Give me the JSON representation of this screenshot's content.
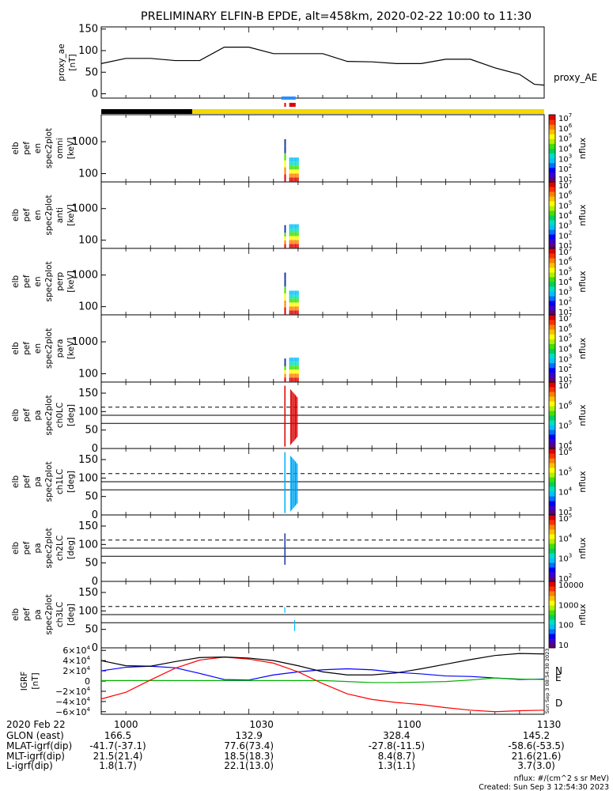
{
  "title": "PRELIMINARY ELFIN-B EPDE, alt=458km, 2020-02-22 10:00 to 11:30",
  "colorbar_label": "nflux",
  "chart_data": [
    {
      "type": "line",
      "id": "proxy_ae",
      "ylabel": [
        "proxy_ae",
        "[nT]"
      ],
      "legend": "proxy_AE",
      "ylim": [
        -10,
        155
      ],
      "yticks": [
        0,
        50,
        100,
        150
      ],
      "x": [
        0,
        5,
        10,
        15,
        20,
        25,
        30,
        35,
        40,
        45,
        50,
        55,
        60,
        65,
        70,
        75,
        80,
        85,
        88,
        90
      ],
      "values": [
        70,
        82,
        82,
        77,
        77,
        108,
        108,
        93,
        93,
        93,
        75,
        74,
        70,
        70,
        80,
        80,
        60,
        45,
        22,
        20
      ]
    },
    {
      "type": "heatmap",
      "id": "omni",
      "scale": "log",
      "ylabel": [
        "elb",
        "pef",
        "en",
        "spec2plot",
        "omni",
        "[keV]"
      ],
      "yticks": [
        100,
        1000
      ],
      "colorbar_ticks": [
        "10",
        "10",
        "10",
        "10",
        "10",
        "10",
        "10"
      ],
      "colorbar_exps": [
        "1",
        "2",
        "3",
        "4",
        "5",
        "6",
        "7"
      ]
    },
    {
      "type": "heatmap",
      "id": "anti",
      "scale": "log",
      "ylabel": [
        "elb",
        "pef",
        "en",
        "spec2plot",
        "anti",
        "[keV]"
      ],
      "yticks": [
        100,
        1000
      ],
      "colorbar_ticks": [
        "10",
        "10",
        "10",
        "10",
        "10",
        "10",
        "10"
      ],
      "colorbar_exps": [
        "1",
        "2",
        "3",
        "4",
        "5",
        "6",
        "7"
      ]
    },
    {
      "type": "heatmap",
      "id": "perp",
      "scale": "log",
      "ylabel": [
        "elb",
        "pef",
        "en",
        "spec2plot",
        "perp",
        "[keV]"
      ],
      "yticks": [
        100,
        1000
      ],
      "colorbar_ticks": [
        "10",
        "10",
        "10",
        "10",
        "10",
        "10",
        "10"
      ],
      "colorbar_exps": [
        "1",
        "2",
        "3",
        "4",
        "5",
        "6",
        "7"
      ]
    },
    {
      "type": "heatmap",
      "id": "para",
      "scale": "log",
      "ylabel": [
        "elb",
        "pef",
        "en",
        "spec2plot",
        "para",
        "[keV]"
      ],
      "yticks": [
        100,
        1000
      ],
      "colorbar_ticks": [
        "10",
        "10",
        "10",
        "10",
        "10",
        "10",
        "10"
      ],
      "colorbar_exps": [
        "1",
        "2",
        "3",
        "4",
        "5",
        "6",
        "7"
      ]
    },
    {
      "type": "heatmap",
      "id": "ch0LC",
      "scale": "linear",
      "ylabel": [
        "elb",
        "pef",
        "pa",
        "spec2plot",
        "ch0LC",
        "[deg]"
      ],
      "ylim": [
        0,
        180
      ],
      "yticks": [
        0,
        50,
        100,
        150
      ],
      "colorbar_ticks": [
        "10",
        "10",
        "10",
        "10"
      ],
      "colorbar_exps": [
        "4",
        "5",
        "6",
        "7"
      ]
    },
    {
      "type": "heatmap",
      "id": "ch1LC",
      "scale": "linear",
      "ylabel": [
        "elb",
        "pef",
        "pa",
        "spec2plot",
        "ch1LC",
        "[deg]"
      ],
      "ylim": [
        0,
        180
      ],
      "yticks": [
        0,
        50,
        100,
        150
      ],
      "colorbar_ticks": [
        "10",
        "10",
        "10",
        "10"
      ],
      "colorbar_exps": [
        "3",
        "4",
        "5",
        "6"
      ]
    },
    {
      "type": "heatmap",
      "id": "ch2LC",
      "scale": "linear",
      "ylabel": [
        "elb",
        "pef",
        "pa",
        "spec2plot",
        "ch2LC",
        "[deg]"
      ],
      "ylim": [
        0,
        180
      ],
      "yticks": [
        0,
        50,
        100,
        150
      ],
      "colorbar_ticks": [
        "10",
        "10",
        "10",
        "10"
      ],
      "colorbar_exps": [
        "2",
        "3",
        "4",
        "5"
      ]
    },
    {
      "type": "heatmap",
      "id": "ch3LC",
      "scale": "linear",
      "ylabel": [
        "elb",
        "pef",
        "pa",
        "spec2plot",
        "ch3LC",
        "[deg]"
      ],
      "ylim": [
        0,
        180
      ],
      "yticks": [
        0,
        50,
        100,
        150
      ],
      "colorbar_ticks": [
        "10",
        "100",
        "1000",
        "10000"
      ]
    },
    {
      "type": "line",
      "id": "igrf",
      "ylabel": [
        "IGRF",
        "[nT]"
      ],
      "ylim": [
        -65000,
        65000
      ],
      "yticks": [
        -60000,
        -40000,
        -20000,
        0,
        20000,
        40000,
        60000
      ],
      "ytick_labels": [
        "−6×10",
        "−4×10",
        "−2×10",
        "0",
        "2×10",
        "4×10",
        "6×10"
      ],
      "ytick_exps": [
        "4",
        "4",
        "4",
        "",
        "4",
        "4",
        "4"
      ],
      "x": [
        0,
        5,
        10,
        15,
        20,
        25,
        30,
        35,
        40,
        45,
        50,
        55,
        60,
        65,
        70,
        75,
        80,
        85,
        90
      ],
      "series": [
        {
          "name": "N",
          "color": "#0000ff",
          "values": [
            20000,
            27000,
            29000,
            26000,
            15000,
            3000,
            2000,
            12000,
            18000,
            22000,
            24000,
            22000,
            17000,
            14000,
            10000,
            9000,
            6000,
            3000,
            4000
          ]
        },
        {
          "name": "E",
          "color": "#00b000",
          "values": [
            1000,
            1000,
            1000,
            1000,
            1000,
            1000,
            1000,
            1000,
            1000,
            1000,
            -1000,
            -3000,
            -3000,
            -2000,
            -1000,
            2000,
            6000,
            4000,
            3000
          ]
        },
        {
          "name": "D",
          "color": "#ff0000",
          "values": [
            -35000,
            -22000,
            2000,
            25000,
            41000,
            47000,
            43000,
            35000,
            18000,
            -5000,
            -25000,
            -36000,
            -42000,
            -46000,
            -52000,
            -57000,
            -60000,
            -58000,
            -57000
          ]
        },
        {
          "name": "",
          "color": "#000000",
          "values": [
            40000,
            30000,
            29000,
            38000,
            46000,
            47000,
            45000,
            40000,
            30000,
            18000,
            12000,
            12000,
            16000,
            24000,
            33000,
            42000,
            50000,
            54000,
            53000
          ]
        }
      ]
    }
  ],
  "bottom": {
    "row_labels": [
      "2020 Feb 22",
      "GLON (east)",
      "MLAT-igrf(dip)",
      "MLT-igrf(dip)",
      "L-igrf(dip)"
    ],
    "times": [
      "1000",
      "1030",
      "1100",
      "1130"
    ],
    "columns": [
      [
        "166.5",
        "-41.7(-37.1)",
        "21.5(21.4)",
        "1.8(1.7)"
      ],
      [
        "132.9",
        "77.6(73.4)",
        "18.5(18.3)",
        "22.1(13.0)"
      ],
      [
        "328.4",
        "-27.8(-11.5)",
        "8.4(8.7)",
        "1.3(1.1)"
      ],
      [
        "145.2",
        "-58.6(-53.5)",
        "21.6(21.6)",
        "3.7(3.0)"
      ]
    ]
  },
  "footer": {
    "units": "nflux: #/(cm^2 s sr MeV)",
    "created": "Created: Sun Sep  3 12:54:30 2023",
    "vertical_stamp": "Sun Sep  3 08:54:30 2023"
  }
}
